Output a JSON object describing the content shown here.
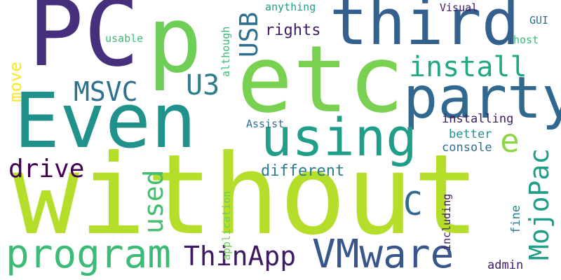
{
  "words": {
    "without": "without",
    "pc": "PC",
    "p": "p",
    "etc": "etc",
    "even": "Even",
    "third": "third",
    "party": "party",
    "using": "using",
    "program": "program",
    "vmware": "VMware",
    "thinapp": "ThinApp",
    "msvc": "MSVC",
    "drive": "drive",
    "install": "install",
    "e": "e",
    "u3": "U3",
    "rights": "rights",
    "different": "different",
    "installing": "installing",
    "better": "better",
    "console": "console",
    "assist": "Assist",
    "usable": "usable",
    "host": "host",
    "gui": "GUI",
    "visual": "Visual",
    "anything": "anything",
    "admin": "admin",
    "c": "C",
    "move": "move",
    "usb": "USB",
    "although": "although",
    "used": "used",
    "application": "application",
    "mojopac": "MojoPac",
    "fine": "fine",
    "including": "including"
  },
  "colors": {
    "background": "#ffffff",
    "palette": [
      "#440154",
      "#3e1a63",
      "#46307e",
      "#39568c",
      "#31688e",
      "#2c7c8e",
      "#21918c",
      "#1f9e89",
      "#22a884",
      "#3bbb75",
      "#6ece58",
      "#7ad151",
      "#8ed645",
      "#b5de2b",
      "#fde725"
    ]
  }
}
